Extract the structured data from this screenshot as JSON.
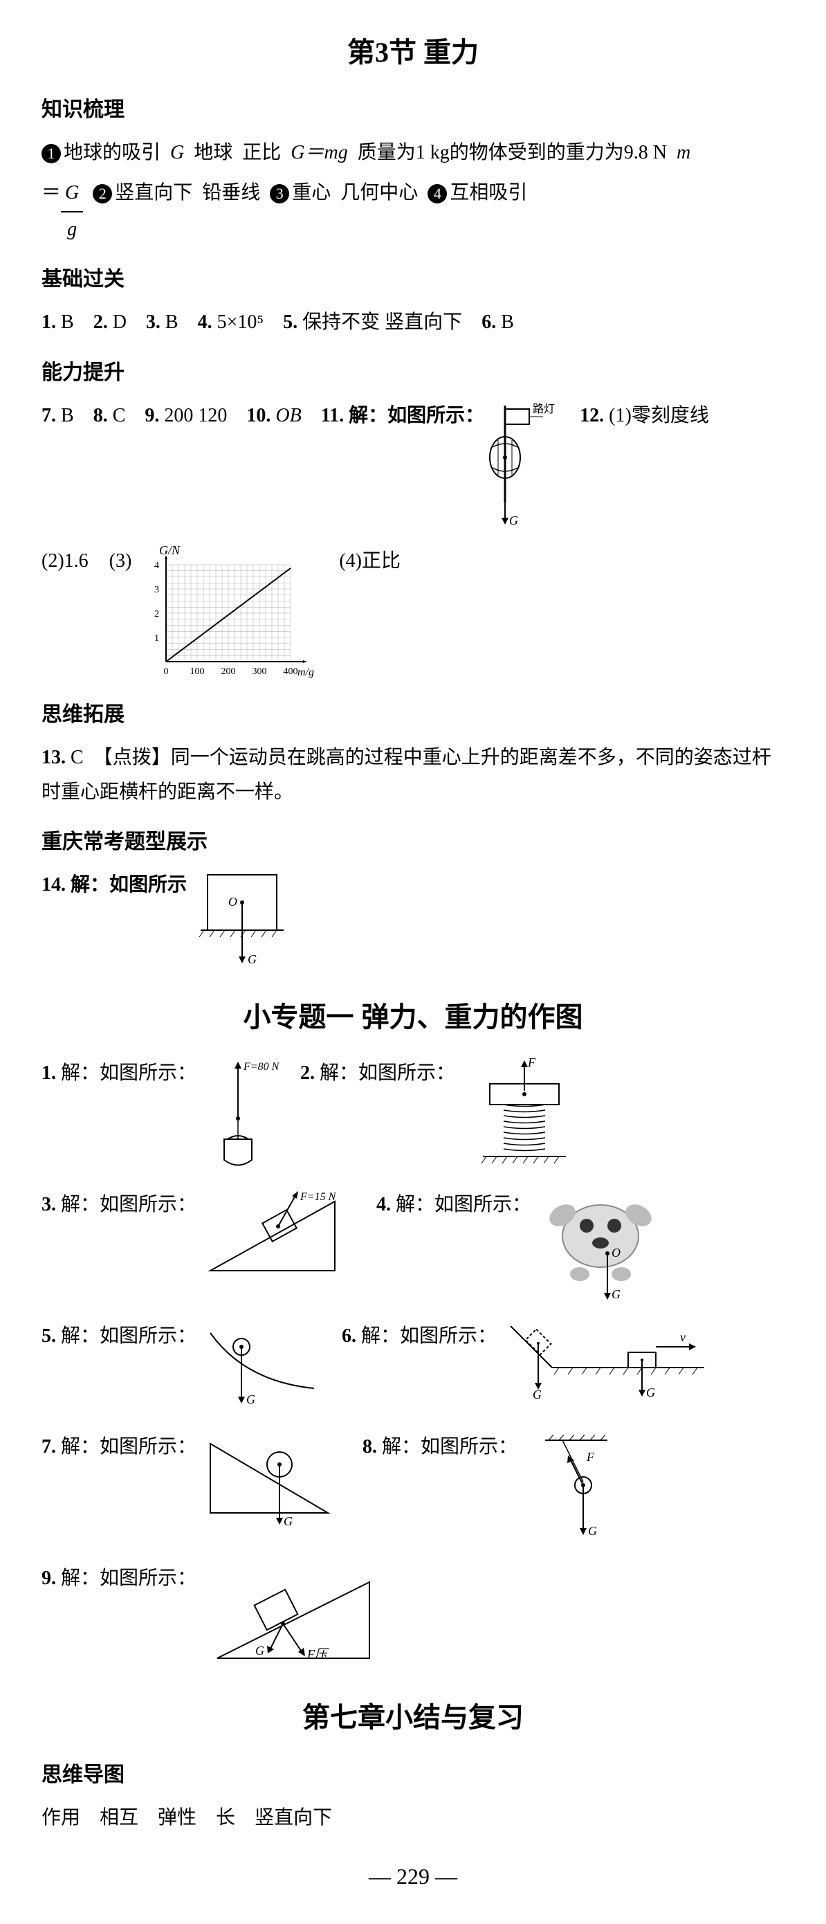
{
  "page_number": "229",
  "title": "第3节  重力",
  "sections": {
    "s1": {
      "header": "知识梳理",
      "bullet1_parts": [
        "地球的吸引",
        "G",
        "地球",
        "正比",
        "G＝mg",
        "质量为1 kg的物体受到的重力为9.8 N",
        "m"
      ],
      "eq_prefix": "＝",
      "frac_num": "G",
      "frac_den": "g",
      "bullet2_parts": [
        "竖直向下",
        "铅垂线"
      ],
      "bullet3_parts": [
        "重心",
        "几何中心"
      ],
      "bullet4_parts": [
        "互相吸引"
      ]
    },
    "s2": {
      "header": "基础过关",
      "answers": [
        {
          "n": "1.",
          "v": "B"
        },
        {
          "n": "2.",
          "v": "D"
        },
        {
          "n": "3.",
          "v": "B"
        },
        {
          "n": "4.",
          "v": "5×10⁵"
        },
        {
          "n": "5.",
          "v": "保持不变  竖直向下"
        },
        {
          "n": "6.",
          "v": "B"
        }
      ]
    },
    "s3": {
      "header": "能力提升",
      "row1": [
        {
          "n": "7.",
          "v": "B"
        },
        {
          "n": "8.",
          "v": "C"
        },
        {
          "n": "9.",
          "v": "200  120"
        },
        {
          "n": "10.",
          "v": "OB"
        }
      ],
      "q11_label": "11. 解：如图所示：",
      "q11_lamp_label": "路灯",
      "q11_G": "G",
      "q12_label": "12.",
      "q12_a1": "(1)零刻度线",
      "row2_a": "(2)1.6",
      "row2_b": "(3)",
      "row2_c": "(4)正比",
      "chart": {
        "ylabel": "G/N",
        "xlabel": "m/g",
        "xticks": [
          "0",
          "100",
          "200",
          "300",
          "400"
        ],
        "yticks": [
          "1",
          "2",
          "3",
          "4"
        ],
        "xmax": 400,
        "ymax": 4
      }
    },
    "s4": {
      "header": "思维拓展",
      "q13_n": "13.",
      "q13_v": "C",
      "q13_hint": "【点拨】同一个运动员在跳高的过程中重心上升的距离差不多，不同的姿态过杆时重心距横杆的距离不一样。"
    },
    "s5": {
      "header": "重庆常考题型展示",
      "q14_label": "14. 解：如图所示",
      "q14_O": "O",
      "q14_G": "G"
    },
    "topic1": {
      "title": "小专题一  弹力、重力的作图",
      "items": [
        {
          "n": "1.",
          "label": "解：如图所示：",
          "extra": "F=80 N"
        },
        {
          "n": "2.",
          "label": "解：如图所示：",
          "extra": "F"
        },
        {
          "n": "3.",
          "label": "解：如图所示：",
          "extra": "F=15 N"
        },
        {
          "n": "4.",
          "label": "解：如图所示：",
          "extra_O": "O",
          "extra_G": "G"
        },
        {
          "n": "5.",
          "label": "解：如图所示：",
          "extra_G": "G"
        },
        {
          "n": "6.",
          "label": "解：如图所示：",
          "extra_G": "G",
          "extra_v": "v"
        },
        {
          "n": "7.",
          "label": "解：如图所示：",
          "extra_G": "G"
        },
        {
          "n": "8.",
          "label": "解：如图所示：",
          "extra_F": "F",
          "extra_G": "G"
        },
        {
          "n": "9.",
          "label": "解：如图所示：",
          "extra_G": "G",
          "extra_F": "F压"
        }
      ]
    },
    "topic2": {
      "title": "第七章小结与复习",
      "header": "思维导图",
      "answers": [
        "作用",
        "相互",
        "弹性",
        "长",
        "竖直向下"
      ]
    }
  }
}
